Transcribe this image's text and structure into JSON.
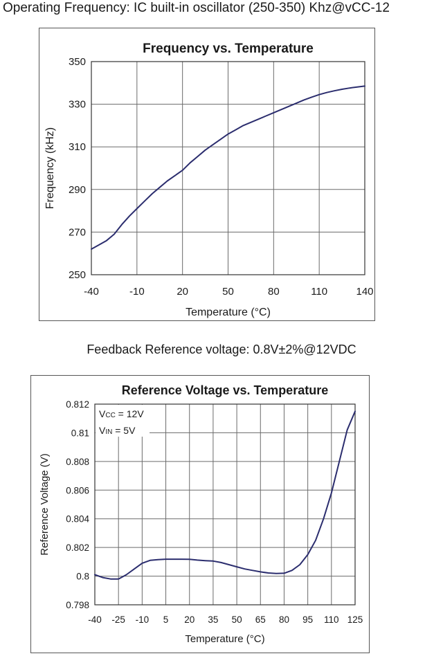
{
  "captions": {
    "top": "Operating Frequency: IC built-in oscillator (250-350) Khz@vCC-12",
    "middle": "Feedback Reference voltage: 0.8V±2%@12VDC"
  },
  "colors": {
    "curve": "#2b2d6e",
    "grid": "#6a6a6a",
    "frame": "#555555",
    "text": "#1a1a1a"
  },
  "chart_data": [
    {
      "type": "line",
      "title": "Frequency vs. Temperature",
      "xlabel": "Temperature (°C)",
      "ylabel": "Frequency (kHz)",
      "xlim": [
        -40,
        140
      ],
      "ylim": [
        250,
        350
      ],
      "xticks": [
        -40,
        -10,
        20,
        50,
        80,
        110,
        140
      ],
      "yticks": [
        250,
        270,
        290,
        310,
        330,
        350
      ],
      "grid": true,
      "series": [
        {
          "x": [
            -40,
            -35,
            -30,
            -25,
            -20,
            -15,
            -10,
            -5,
            0,
            5,
            10,
            15,
            20,
            25,
            30,
            35,
            40,
            45,
            50,
            55,
            60,
            65,
            70,
            75,
            80,
            85,
            90,
            95,
            100,
            105,
            110,
            115,
            120,
            125,
            130,
            135,
            140
          ],
          "y": [
            262,
            264,
            266,
            269,
            273.5,
            277.5,
            281,
            284.5,
            288,
            291,
            294,
            296.5,
            299,
            302.5,
            305.5,
            308.5,
            311,
            313.5,
            316,
            318,
            320,
            321.5,
            323,
            324.5,
            326,
            327.5,
            329,
            330.5,
            332,
            333.3,
            334.5,
            335.5,
            336.3,
            337,
            337.6,
            338.1,
            338.5
          ]
        }
      ]
    },
    {
      "type": "line",
      "title": "Reference Voltage vs. Temperature",
      "xlabel": "Temperature (°C)",
      "ylabel": "Reference Voltage (V)",
      "xlim": [
        -40,
        125
      ],
      "ylim": [
        0.798,
        0.812
      ],
      "xticks": [
        -40,
        -25,
        -10,
        5,
        20,
        35,
        50,
        65,
        80,
        95,
        110,
        125
      ],
      "yticks": [
        0.798,
        0.8,
        0.802,
        0.804,
        0.806,
        0.808,
        0.81,
        0.812
      ],
      "ytick_labels": [
        "0.798",
        "0.8",
        "0.802",
        "0.804",
        "0.806",
        "0.808",
        "0.81",
        "0.812"
      ],
      "grid": true,
      "annotations": [
        {
          "main": "V",
          "sub": "CC",
          "rest": " = 12V"
        },
        {
          "main": "V",
          "sub": "IN",
          "rest": " = 5V"
        }
      ],
      "series": [
        {
          "x": [
            -40,
            -35,
            -30,
            -25,
            -20,
            -15,
            -10,
            -5,
            0,
            5,
            10,
            15,
            20,
            25,
            30,
            35,
            40,
            45,
            50,
            55,
            60,
            65,
            70,
            75,
            80,
            85,
            90,
            95,
            100,
            105,
            110,
            115,
            120,
            125
          ],
          "y": [
            0.8001,
            0.7999,
            0.7998,
            0.7998,
            0.8001,
            0.8005,
            0.8009,
            0.8011,
            0.80115,
            0.80118,
            0.80118,
            0.80118,
            0.80117,
            0.80112,
            0.80108,
            0.80105,
            0.80095,
            0.8008,
            0.80065,
            0.8005,
            0.8004,
            0.8003,
            0.80022,
            0.80018,
            0.8002,
            0.8004,
            0.8008,
            0.8015,
            0.8025,
            0.804,
            0.8058,
            0.808,
            0.8102,
            0.8115
          ]
        }
      ]
    }
  ]
}
